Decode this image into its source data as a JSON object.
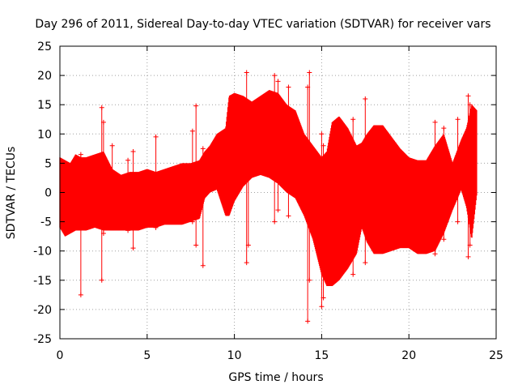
{
  "chart_data": {
    "type": "scatter",
    "title": "Day 296 of 2011, Sidereal Day-to-day VTEC variation (SDTVAR) for receiver vars",
    "xlabel": "GPS time / hours",
    "ylabel": "SDTVAR / TECUs",
    "xlim": [
      0,
      25
    ],
    "ylim": [
      -25,
      25
    ],
    "xticks": [
      "0",
      "5",
      "10",
      "15",
      "20",
      "25"
    ],
    "yticks": [
      "25",
      "20",
      "15",
      "10",
      "5",
      "0",
      "-5",
      "-10",
      "-15",
      "-20",
      "-25"
    ],
    "grid": true,
    "marker": "+",
    "color": "#ff0000",
    "series": [
      {
        "name": "SDTVAR",
        "envelope_x": [
          0.0,
          0.3,
          0.6,
          0.9,
          1.2,
          1.5,
          2.0,
          2.5,
          3.0,
          3.5,
          4.0,
          4.5,
          5.0,
          5.5,
          6.0,
          6.5,
          7.0,
          7.5,
          8.0,
          8.3,
          8.6,
          9.0,
          9.5,
          9.7,
          10.0,
          10.5,
          11.0,
          11.5,
          12.0,
          12.5,
          13.0,
          13.5,
          14.0,
          14.5,
          15.0,
          15.3,
          15.6,
          16.0,
          16.5,
          17.0,
          17.3,
          17.6,
          18.0,
          18.5,
          19.0,
          19.5,
          20.0,
          20.5,
          21.0,
          21.5,
          22.0,
          22.5,
          23.0,
          23.3,
          23.6,
          23.9
        ],
        "envelope_upper": [
          6.0,
          5.5,
          5.0,
          6.5,
          6.0,
          6.0,
          6.5,
          7.0,
          4.0,
          3.0,
          3.5,
          3.5,
          4.0,
          3.5,
          4.0,
          4.5,
          5.0,
          5.0,
          5.5,
          7.0,
          8.0,
          10.0,
          11.0,
          16.5,
          17.0,
          16.5,
          15.5,
          16.5,
          17.5,
          17.0,
          15.0,
          14.0,
          10.0,
          8.0,
          6.0,
          7.0,
          12.0,
          13.0,
          11.0,
          8.0,
          8.5,
          10.0,
          11.5,
          11.5,
          9.5,
          7.5,
          6.0,
          5.5,
          5.5,
          8.0,
          10.0,
          5.0,
          9.0,
          11.0,
          15.0,
          14.0
        ],
        "envelope_lower": [
          -6.0,
          -7.5,
          -7.0,
          -6.5,
          -6.5,
          -6.5,
          -6.0,
          -6.5,
          -6.5,
          -6.5,
          -6.5,
          -6.5,
          -6.0,
          -6.0,
          -5.5,
          -5.5,
          -5.5,
          -5.0,
          -4.5,
          -1.0,
          0.0,
          0.5,
          -4.0,
          -4.0,
          -1.5,
          1.0,
          2.5,
          3.0,
          2.5,
          1.5,
          0.0,
          -1.0,
          -4.0,
          -8.0,
          -14.0,
          -16.0,
          -16.0,
          -15.0,
          -13.0,
          -10.5,
          -6.0,
          -8.5,
          -10.5,
          -10.5,
          -10.0,
          -9.5,
          -9.5,
          -10.5,
          -10.5,
          -10.0,
          -7.0,
          -3.0,
          0.5,
          -2.5,
          -8.0,
          0.0
        ],
        "spikes_x": [
          1.2,
          2.4,
          2.5,
          3.0,
          3.9,
          4.2,
          5.5,
          7.6,
          7.8,
          8.2,
          10.7,
          10.8,
          12.3,
          12.5,
          13.1,
          14.2,
          14.3,
          15.0,
          15.1,
          16.8,
          17.5,
          21.5,
          22.0,
          22.8,
          23.4,
          23.5
        ],
        "spikes_low": [
          -17.5,
          -15.0,
          -7.0,
          -6.0,
          -6.5,
          -9.5,
          -6.0,
          -5.0,
          -9.0,
          -12.5,
          -12.0,
          -9.0,
          -5.0,
          -3.0,
          -4.0,
          -22.0,
          -15.0,
          -19.5,
          -18.0,
          -14.0,
          -12.0,
          -10.5,
          -8.0,
          -5.0,
          -11.0,
          -9.0
        ],
        "spikes_high": [
          6.5,
          14.5,
          12.0,
          8.0,
          5.5,
          7.0,
          9.5,
          10.5,
          14.8,
          7.5,
          20.5,
          12.0,
          20.0,
          19.0,
          18.0,
          18.0,
          20.5,
          10.0,
          8.0,
          12.5,
          16.0,
          12.0,
          11.0,
          12.5,
          16.5,
          15.0
        ]
      }
    ]
  }
}
